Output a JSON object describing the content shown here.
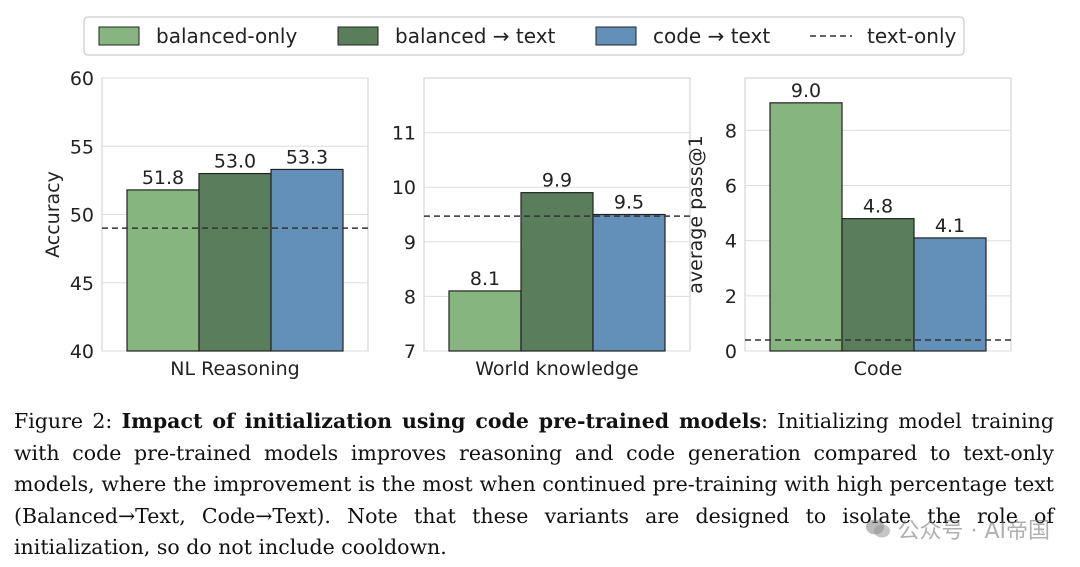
{
  "legend": [
    {
      "label": "balanced-only",
      "kind": "bar",
      "color": "#86b57f"
    },
    {
      "label": "balanced → text",
      "kind": "bar",
      "color": "#5a7e5c"
    },
    {
      "label": "code → text",
      "kind": "bar",
      "color": "#6290b8"
    },
    {
      "label": "text-only",
      "kind": "line",
      "color": "#333333"
    }
  ],
  "chart_data": [
    {
      "type": "bar",
      "xlabel": "NL Reasoning",
      "ylabel": "Accuracy",
      "ylim": [
        40,
        60
      ],
      "yticks": [
        40,
        45,
        50,
        55,
        60
      ],
      "categories": [
        "balanced-only",
        "balanced → text",
        "code → text"
      ],
      "values": [
        51.8,
        53.0,
        53.3
      ],
      "value_labels": [
        "51.8",
        "53.0",
        "53.3"
      ],
      "text_only_baseline": 49.0,
      "grid": true
    },
    {
      "type": "bar",
      "xlabel": "World knowledge",
      "ylabel": "",
      "ylim": [
        7,
        12
      ],
      "yticks": [
        7,
        8,
        9,
        10,
        11
      ],
      "categories": [
        "balanced-only",
        "balanced → text",
        "code → text"
      ],
      "values": [
        8.1,
        9.9,
        9.5
      ],
      "value_labels": [
        "8.1",
        "9.9",
        "9.5"
      ],
      "text_only_baseline": 9.47,
      "grid": true
    },
    {
      "type": "bar",
      "xlabel": "Code",
      "ylabel": "average pass@1",
      "ylim": [
        0,
        9.9
      ],
      "yticks": [
        0,
        2,
        4,
        6,
        8
      ],
      "categories": [
        "balanced-only",
        "balanced → text",
        "code → text"
      ],
      "values": [
        9.0,
        4.8,
        4.1
      ],
      "value_labels": [
        "9.0",
        "4.8",
        "4.1"
      ],
      "text_only_baseline": 0.4,
      "grid": true
    }
  ],
  "caption": {
    "prefix": "Figure 2: ",
    "title": "Impact of initialization using code pre-trained models",
    "body": ": Initializing model training with code pre-trained models improves reasoning and code generation compared to text-only models, where the improvement is the most when continued pre-training with high percentage text (Balanced→Text, Code→Text). Note that these variants are designed to isolate the role of initialization, so do not include cooldown."
  },
  "watermark": {
    "text": "公众号 · AI帝国",
    "icon": "wechat-icon"
  }
}
